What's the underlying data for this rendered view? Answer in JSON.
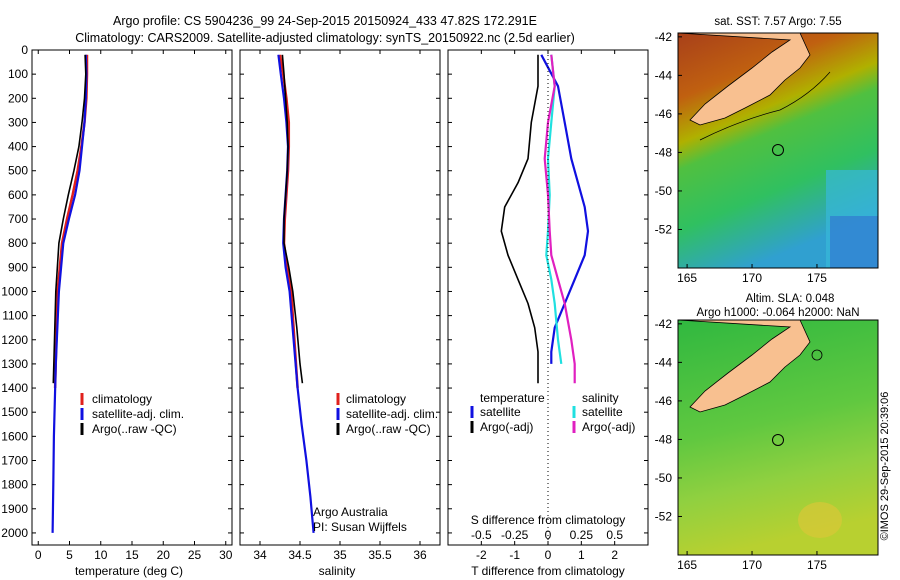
{
  "header": {
    "line1": "Argo profile: CS 5904236_99 24-Sep-2015 20150924_433 47.82S 172.291E",
    "line2": "Climatology: CARS2009. Satellite-adjusted climatology: synTS_20150922.nc (2.5d earlier)"
  },
  "colors": {
    "climatology": "#e0201c",
    "satellite": "#1010e0",
    "argo": "#000000",
    "sat_salinity": "#20e0e0",
    "argo_salinity": "#e020c0"
  },
  "y_axis": {
    "ticks": [
      "0",
      "100",
      "200",
      "300",
      "400",
      "500",
      "600",
      "700",
      "800",
      "900",
      "1000",
      "1100",
      "1200",
      "1300",
      "1400",
      "1500",
      "1600",
      "1700",
      "1800",
      "1900",
      "2000"
    ]
  },
  "temperature_panel": {
    "xlabel": "temperature (deg C)",
    "xticks": [
      "0",
      "5",
      "10",
      "15",
      "20",
      "25",
      "30"
    ],
    "legend": [
      "climatology",
      "satellite-adj. clim.",
      "Argo(..raw -QC)"
    ]
  },
  "salinity_panel": {
    "xlabel": "salinity",
    "xticks": [
      "34",
      "34.5",
      "35",
      "35.5",
      "36"
    ],
    "legend": [
      "climatology",
      "satellite-adj. clim.",
      "Argo(..raw -QC)"
    ],
    "credit1": "Argo Australia",
    "credit2": "PI: Susan Wijffels"
  },
  "difference_panel": {
    "xlabel": "T difference from climatology",
    "xticks": [
      "-2",
      "-1",
      "0",
      "1",
      "2"
    ],
    "s_label": "S difference from climatology",
    "s_ticks": [
      "-0.5",
      "-0.25",
      "0",
      "0.25",
      "0.5"
    ],
    "legend_left_title": "temperature",
    "legend_left": [
      "satellite",
      "Argo(-adj)"
    ],
    "legend_right_title": "salinity",
    "legend_right": [
      "satellite",
      "Argo(-adj)"
    ]
  },
  "sst_map": {
    "title": "sat. SST: 7.57 Argo: 7.55",
    "yticks": [
      "-42",
      "-44",
      "-46",
      "-48",
      "-50",
      "-52"
    ],
    "xticks": [
      "165",
      "170",
      "175"
    ]
  },
  "sla_map": {
    "title1": "Altim. SLA: 0.048",
    "title2": "Argo h1000: -0.064 h2000: NaN",
    "yticks": [
      "-42",
      "-44",
      "-46",
      "-48",
      "-50",
      "-52"
    ],
    "xticks": [
      "165",
      "170",
      "175"
    ]
  },
  "watermark": "©IMOS 29-Sep-2015 20:39:06",
  "chart_data": [
    {
      "type": "line",
      "xlabel": "temperature (deg C)",
      "xlim": [
        -1,
        31
      ],
      "ylim": [
        2050,
        0
      ],
      "series": [
        {
          "name": "climatology",
          "x": [
            7.8,
            7.8,
            7.7,
            7.4,
            6.9,
            6.3,
            5.5,
            4.6,
            3.8,
            3.1,
            2.7
          ],
          "y": [
            20,
            100,
            200,
            300,
            400,
            500,
            600,
            700,
            800,
            1000,
            1400
          ]
        },
        {
          "name": "satellite-adj. clim.",
          "x": [
            7.6,
            7.7,
            7.6,
            7.4,
            7.0,
            6.6,
            5.9,
            4.9,
            4.0,
            3.3,
            2.8,
            2.5,
            2.4,
            2.3
          ],
          "y": [
            20,
            100,
            200,
            300,
            400,
            500,
            600,
            700,
            800,
            1000,
            1300,
            1600,
            1800,
            2000
          ]
        },
        {
          "name": "Argo(..raw -QC)",
          "x": [
            7.5,
            7.6,
            7.4,
            7.0,
            6.5,
            5.7,
            4.8,
            4.0,
            3.3,
            2.8,
            2.6,
            2.4
          ],
          "y": [
            20,
            100,
            200,
            300,
            400,
            500,
            600,
            700,
            800,
            1000,
            1200,
            1380
          ]
        }
      ]
    },
    {
      "type": "line",
      "xlabel": "salinity",
      "xlim": [
        33.75,
        36.25
      ],
      "ylim": [
        2050,
        0
      ],
      "series": [
        {
          "name": "climatology",
          "x": [
            34.25,
            34.29,
            34.33,
            34.36,
            34.36,
            34.35,
            34.33,
            34.31,
            34.3,
            34.34,
            34.39,
            34.43,
            34.47
          ],
          "y": [
            20,
            100,
            200,
            300,
            400,
            500,
            600,
            700,
            800,
            900,
            1000,
            1200,
            1400
          ]
        },
        {
          "name": "satellite-adj. clim.",
          "x": [
            34.23,
            34.26,
            34.3,
            34.33,
            34.35,
            34.34,
            34.32,
            34.3,
            34.29,
            34.32,
            34.37,
            34.42,
            34.47,
            34.52,
            34.58,
            34.63,
            34.67
          ],
          "y": [
            20,
            100,
            200,
            300,
            400,
            500,
            600,
            700,
            800,
            900,
            1000,
            1200,
            1400,
            1550,
            1700,
            1850,
            2000
          ]
        },
        {
          "name": "Argo(..raw -QC)",
          "x": [
            34.28,
            34.3,
            34.32,
            34.34,
            34.35,
            34.34,
            34.32,
            34.3,
            34.3,
            34.36,
            34.41,
            34.46,
            34.5,
            34.53
          ],
          "y": [
            20,
            100,
            200,
            300,
            400,
            500,
            600,
            700,
            800,
            900,
            1000,
            1150,
            1300,
            1380
          ]
        }
      ]
    },
    {
      "type": "line",
      "xlabel": "T difference from climatology",
      "xlim": [
        -3,
        3
      ],
      "ylim": [
        2050,
        0
      ],
      "series": [
        {
          "name": "temperature satellite",
          "x": [
            -0.2,
            0.3,
            0.5,
            0.7,
            0.9,
            1.1,
            1.2,
            1.1,
            0.8,
            0.5,
            0.2,
            0.1,
            0.1
          ],
          "y": [
            20,
            150,
            300,
            450,
            550,
            650,
            750,
            850,
            950,
            1050,
            1150,
            1250,
            1300
          ]
        },
        {
          "name": "temperature Argo(-adj)",
          "x": [
            -0.3,
            -0.3,
            -0.5,
            -0.6,
            -0.9,
            -1.3,
            -1.4,
            -1.2,
            -0.9,
            -0.6,
            -0.4,
            -0.3,
            -0.3
          ],
          "y": [
            20,
            150,
            300,
            450,
            550,
            650,
            750,
            850,
            950,
            1050,
            1150,
            1250,
            1380
          ]
        },
        {
          "name": "salinity satellite",
          "x": [
            0.1,
            0.2,
            0.1,
            0.0,
            0.05,
            0.0,
            -0.05,
            0.1,
            0.2,
            0.3,
            0.4
          ],
          "y": [
            20,
            150,
            300,
            450,
            600,
            750,
            850,
            950,
            1050,
            1200,
            1300
          ]
        },
        {
          "name": "salinity Argo(-adj)",
          "x": [
            0.1,
            0.2,
            0.0,
            -0.1,
            0.0,
            0.05,
            0.1,
            0.3,
            0.5,
            0.7,
            0.8,
            0.8
          ],
          "y": [
            20,
            150,
            300,
            450,
            600,
            750,
            850,
            950,
            1050,
            1200,
            1300,
            1380
          ]
        }
      ]
    }
  ]
}
